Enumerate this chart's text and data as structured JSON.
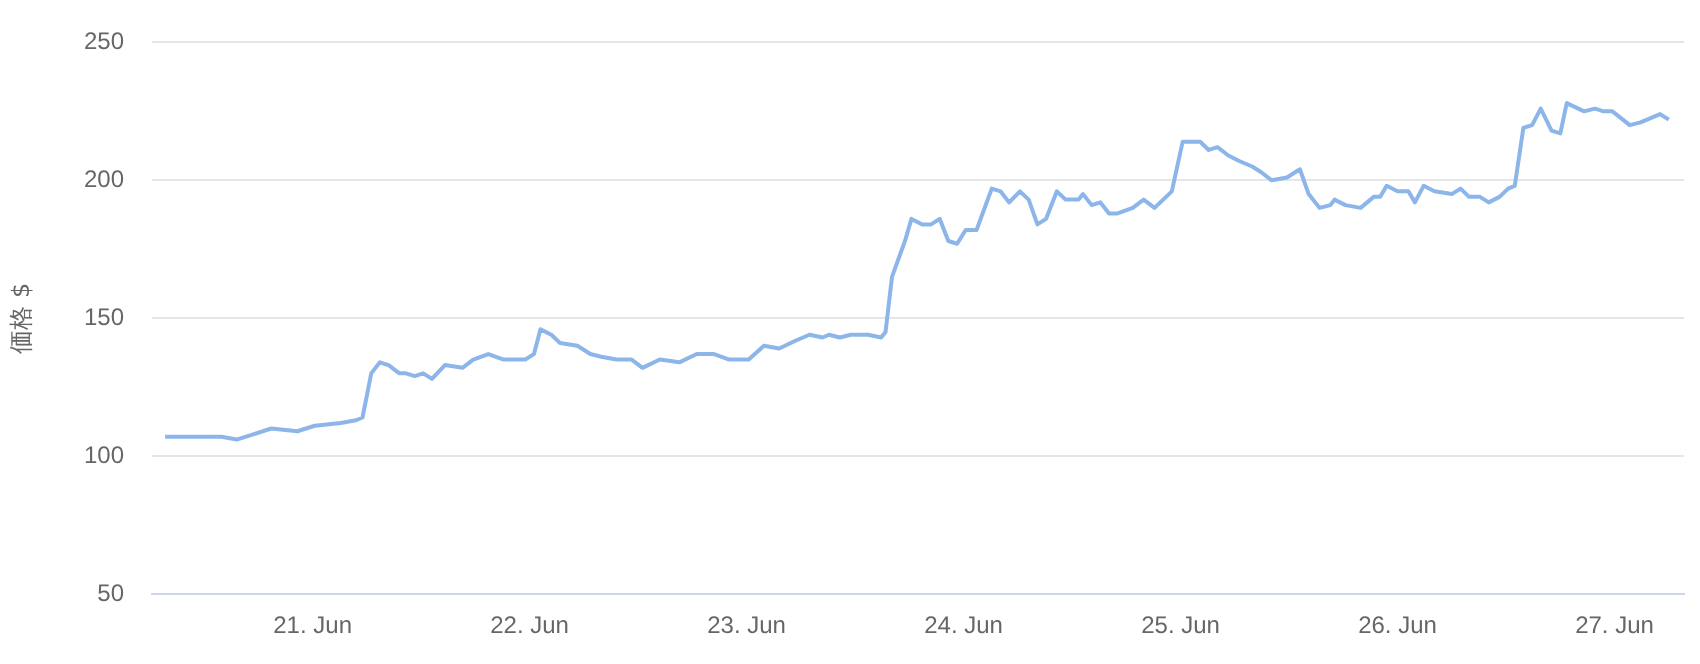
{
  "chart_data": {
    "type": "line",
    "ylabel": "価格 $",
    "xlim": [
      "--06-20T06:14",
      "--06-27T07:41"
    ],
    "xticks": [
      {
        "value": "--06-21",
        "label": "21. Jun"
      },
      {
        "value": "--06-22",
        "label": "22. Jun"
      },
      {
        "value": "--06-23",
        "label": "23. Jun"
      },
      {
        "value": "--06-24",
        "label": "24. Jun"
      },
      {
        "value": "--06-25",
        "label": "25. Jun"
      },
      {
        "value": "--06-26",
        "label": "26. Jun"
      },
      {
        "value": "--06-27",
        "label": "27. Jun"
      }
    ],
    "ylim": [
      50,
      250
    ],
    "yticks": [
      50,
      100,
      150,
      200,
      250
    ],
    "grid": "y",
    "legend": false,
    "marker": "none",
    "line_style": "solid",
    "series": [
      {
        "color": "#8cb5e9",
        "x": [
          "--06-20T07:41",
          "--06-20T10:34",
          "--06-20T13:55",
          "--06-20T15:36",
          "--06-20T17:31",
          "--06-20T19:26",
          "--06-20T22:19",
          "--06-21T00:14",
          "--06-21T03:07",
          "--06-21T04:48",
          "--06-21T05:31",
          "--06-21T06:29",
          "--06-21T07:26",
          "--06-21T08:24",
          "--06-21T09:36",
          "--06-21T10:19",
          "--06-21T11:17",
          "--06-21T12:14",
          "--06-21T13:12",
          "--06-21T14:38",
          "--06-21T16:34",
          "--06-21T17:46",
          "--06-21T19:26",
          "--06-21T21:07",
          "--06-21T23:31",
          "--06-22T00:29",
          "--06-22T01:12",
          "--06-22T02:24",
          "--06-22T03:22",
          "--06-22T05:17",
          "--06-22T06:43",
          "--06-22T07:55",
          "--06-22T09:36",
          "--06-22T11:17",
          "--06-22T12:29",
          "--06-22T14:24",
          "--06-22T16:34",
          "--06-22T18:29",
          "--06-22T20:24",
          "--06-22T22:05",
          "--06-23T00:14",
          "--06-23T01:55",
          "--06-23T03:36",
          "--06-23T05:31",
          "--06-23T06:58",
          "--06-23T08:24",
          "--06-23T09:07",
          "--06-23T10:19",
          "--06-23T11:31",
          "--06-23T13:26",
          "--06-23T14:53",
          "--06-23T15:22",
          "--06-23T16:05",
          "--06-23T17:31",
          "--06-23T18:14",
          "--06-23T19:26",
          "--06-23T20:24",
          "--06-23T21:22",
          "--06-23T22:19",
          "--06-23T23:17",
          "--06-24T00:14",
          "--06-24T01:26",
          "--06-24T03:07",
          "--06-24T04:05",
          "--06-24T05:02",
          "--06-24T06:14",
          "--06-24T07:12",
          "--06-24T08:10",
          "--06-24T09:07",
          "--06-24T10:19",
          "--06-24T11:17",
          "--06-24T12:43",
          "--06-24T13:12",
          "--06-24T14:10",
          "--06-24T15:07",
          "--06-24T16:05",
          "--06-24T17:02",
          "--06-24T18:43",
          "--06-24T19:55",
          "--06-24T21:07",
          "--06-24T23:02",
          "--06-25T00:14",
          "--06-25T02:10",
          "--06-25T03:07",
          "--06-25T04:05",
          "--06-25T05:17",
          "--06-25T06:29",
          "--06-25T07:55",
          "--06-25T08:53",
          "--06-25T10:05",
          "--06-25T11:46",
          "--06-25T13:12",
          "--06-25T14:10",
          "--06-25T15:22",
          "--06-25T16:34",
          "--06-25T17:02",
          "--06-25T18:14",
          "--06-25T19:55",
          "--06-25T21:22",
          "--06-25T22:05",
          "--06-25T22:48",
          "--06-26T00:00",
          "--06-26T01:12",
          "--06-26T01:55",
          "--06-26T02:53",
          "--06-26T04:05",
          "--06-26T06:00",
          "--06-26T06:58",
          "--06-26T07:55",
          "--06-26T09:07",
          "--06-26T10:05",
          "--06-26T11:17",
          "--06-26T12:14",
          "--06-26T12:58",
          "--06-26T13:55",
          "--06-26T14:53",
          "--06-26T15:50",
          "--06-26T17:02",
          "--06-26T18:00",
          "--06-26T18:43",
          "--06-26T20:38",
          "--06-26T21:50",
          "--06-26T22:48",
          "--06-26T23:46",
          "--06-27T01:41",
          "--06-27T02:53",
          "--06-27T05:02",
          "--06-27T06:00"
        ],
        "values": [
          107,
          107,
          107,
          106,
          108,
          110,
          109,
          111,
          112,
          113,
          114,
          130,
          134,
          133,
          130,
          130,
          129,
          130,
          128,
          133,
          132,
          135,
          137,
          135,
          135,
          137,
          146,
          144,
          141,
          140,
          137,
          136,
          135,
          135,
          132,
          135,
          134,
          137,
          137,
          135,
          135,
          140,
          139,
          142,
          144,
          143,
          144,
          143,
          144,
          144,
          143,
          145,
          165,
          178,
          186,
          184,
          184,
          186,
          178,
          177,
          182,
          182,
          197,
          196,
          192,
          196,
          193,
          184,
          186,
          196,
          193,
          193,
          195,
          191,
          192,
          188,
          188,
          190,
          193,
          190,
          196,
          214,
          214,
          211,
          212,
          209,
          207,
          205,
          203,
          200,
          201,
          204,
          195,
          190,
          191,
          193,
          191,
          190,
          194,
          194,
          198,
          196,
          196,
          192,
          198,
          196,
          195,
          197,
          194,
          194,
          192,
          194,
          197,
          198,
          219,
          220,
          226,
          218,
          217,
          228,
          225,
          226,
          225,
          225,
          220,
          221,
          224,
          222
        ]
      }
    ]
  }
}
